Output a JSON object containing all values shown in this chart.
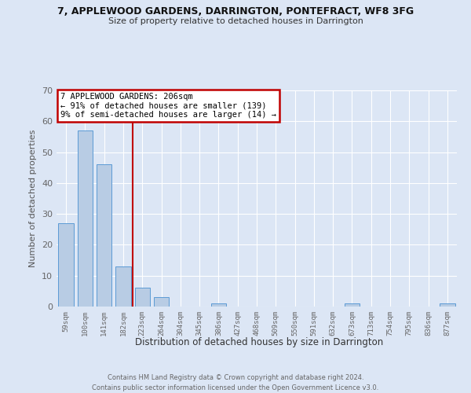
{
  "title1": "7, APPLEWOOD GARDENS, DARRINGTON, PONTEFRACT, WF8 3FG",
  "title2": "Size of property relative to detached houses in Darrington",
  "xlabel": "Distribution of detached houses by size in Darrington",
  "ylabel": "Number of detached properties",
  "categories": [
    "59sqm",
    "100sqm",
    "141sqm",
    "182sqm",
    "223sqm",
    "264sqm",
    "304sqm",
    "345sqm",
    "386sqm",
    "427sqm",
    "468sqm",
    "509sqm",
    "550sqm",
    "591sqm",
    "632sqm",
    "673sqm",
    "713sqm",
    "754sqm",
    "795sqm",
    "836sqm",
    "877sqm"
  ],
  "values": [
    27,
    57,
    46,
    13,
    6,
    3,
    0,
    0,
    1,
    0,
    0,
    0,
    0,
    0,
    0,
    1,
    0,
    0,
    0,
    0,
    1
  ],
  "bar_color": "#b8cce4",
  "bar_edge_color": "#5b9bd5",
  "background_color": "#dce6f5",
  "grid_color": "#ffffff",
  "vline_color": "#c00000",
  "annotation_text": "7 APPLEWOOD GARDENS: 206sqm\n← 91% of detached houses are smaller (139)\n9% of semi-detached houses are larger (14) →",
  "annotation_box_color": "#ffffff",
  "annotation_box_edge": "#c00000",
  "ylim": [
    0,
    70
  ],
  "yticks": [
    0,
    10,
    20,
    30,
    40,
    50,
    60,
    70
  ],
  "footer": "Contains HM Land Registry data © Crown copyright and database right 2024.\nContains public sector information licensed under the Open Government Licence v3.0."
}
